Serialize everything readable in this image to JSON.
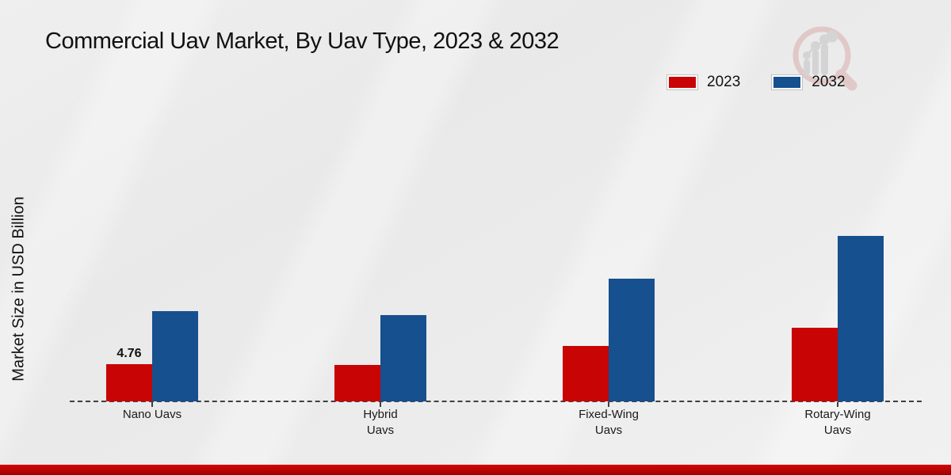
{
  "page": {
    "title": "Commercial Uav Market, By Uav Type, 2023 & 2032",
    "y_axis_label": "Market Size in USD Billion"
  },
  "legend": {
    "items": [
      {
        "label": "2023",
        "color": "#c80404"
      },
      {
        "label": "2032",
        "color": "#16508f"
      }
    ]
  },
  "chart_data": {
    "type": "bar",
    "title": "Commercial Uav Market, By Uav Type, 2023 & 2032",
    "categories": [
      "Nano Uavs",
      "Hybrid Uavs",
      "Fixed-Wing Uavs",
      "Rotary-Wing Uavs"
    ],
    "categories_display": [
      "Nano Uavs",
      "Hybrid\nUavs",
      "Fixed-Wing\nUavs",
      "Rotary-Wing\nUavs"
    ],
    "series": [
      {
        "name": "2023",
        "color": "#c80404",
        "values": [
          4.76,
          4.7,
          7.1,
          9.4
        ],
        "data_labels": [
          "4.76",
          "",
          "",
          ""
        ]
      },
      {
        "name": "2032",
        "color": "#16508f",
        "values": [
          11.5,
          11.0,
          15.7,
          21.2
        ],
        "data_labels": [
          "",
          "",
          "",
          ""
        ]
      }
    ],
    "xlabel": "",
    "ylabel": "Market Size in USD Billion",
    "ylim": [
      0,
      25
    ],
    "grid": false,
    "legend_position": "top-right",
    "baseline_style": "dashed"
  },
  "watermark": {
    "icon": "magnifier-bar-chart-logo"
  },
  "footer": {
    "bar_color": "#c00404"
  }
}
